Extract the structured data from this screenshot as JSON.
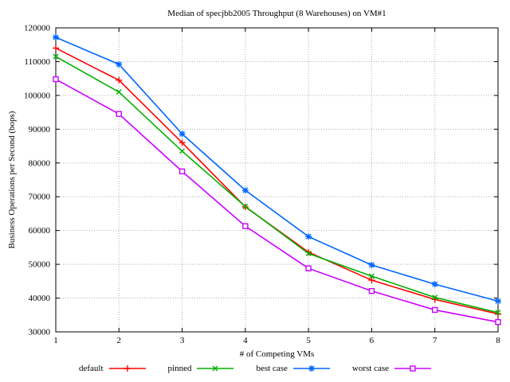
{
  "chart_data": {
    "type": "line",
    "title": "Median of specjbb2005 Throughput (8 Warehouses) on VM#1",
    "xlabel": "# of Competing VMs",
    "ylabel": "Business Operations per Second (bops)",
    "x": [
      1,
      2,
      3,
      4,
      5,
      6,
      7,
      8
    ],
    "xlim": [
      1,
      8
    ],
    "ylim": [
      30000,
      120000
    ],
    "ytick_step": 10000,
    "grid": true,
    "grid_color": "#b0b0b0",
    "axis_color": "#000000",
    "legend_position": "bottom-center",
    "series": [
      {
        "name": "default",
        "color": "#ff0000",
        "marker": "plus",
        "values": [
          114000,
          104500,
          86000,
          67000,
          53600,
          45300,
          39600,
          35300
        ]
      },
      {
        "name": "pinned",
        "color": "#00b000",
        "marker": "cross",
        "values": [
          111500,
          101000,
          83500,
          67100,
          53200,
          46500,
          40200,
          35700
        ]
      },
      {
        "name": "best case",
        "color": "#0066ff",
        "marker": "asterisk",
        "values": [
          117200,
          109200,
          88600,
          71900,
          58200,
          49800,
          44100,
          39100
        ]
      },
      {
        "name": "worst case",
        "color": "#cc00ff",
        "marker": "square",
        "values": [
          104800,
          94500,
          77500,
          61300,
          48800,
          42100,
          36500,
          32900
        ]
      }
    ]
  }
}
